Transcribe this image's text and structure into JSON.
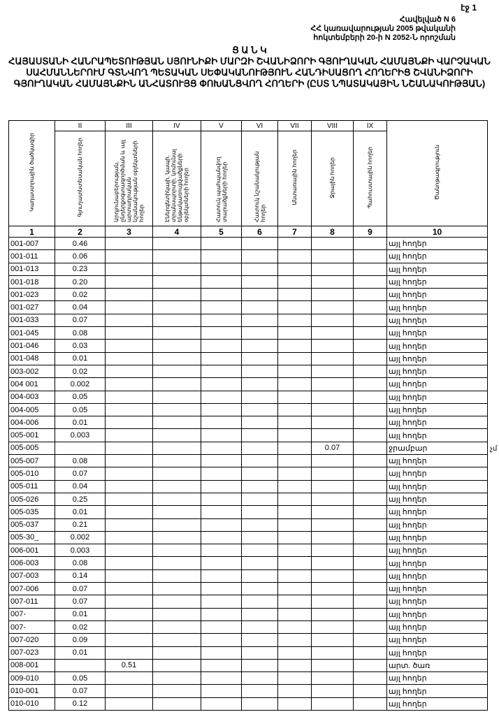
{
  "page_number": "էջ 1",
  "annex": [
    "Հավելված N 6",
    "ՀՀ կառավարության 2005 թվականի",
    "հոկտեմբերի 20-ի N 2052-Ն որոշման"
  ],
  "title": {
    "heading": "Ց Ա Ն Կ",
    "text": "ՀԱՅԱՍՏԱՆԻ ՀԱՆՐԱՊԵՏՈՒԹՅԱՆ ՍՅՈՒՆԻՔԻ ՄԱՐԶԻ ՇՎԱՆԻՁՈՐԻ ԳՅՈՒՂԱԿԱՆ ՀԱՄԱՅՆՔԻ ՎԱՐՉԱԿԱՆ ՍԱՀՄԱՆՆԵՐՈՒՄ ԳՏՆՎՈՂ ՊԵՏԱԿԱՆ ՍԵՓԱԿԱՆՈՒԹՅՈՒՆ ՀԱՆԴԻՍԱՑՈՂ ՀՈՂԵՐԻՑ ՇՎԱՆԻՁՈՐԻ ԳՅՈՒՂԱԿԱՆ ՀԱՄԱՅՆՔԻՆ ԱՆՀԱՏՈՒՅՑ ՓՈԽԱՆՑՎՈՂ ՀՈՂԵՐԻ (ԸՍՏ ՆՊԱՏԱԿԱՅԻՆ ՆՇԱՆԱԿՈՒԹՅԱՆ)"
  },
  "table": {
    "roman": [
      "",
      "II",
      "III",
      "IV",
      "V",
      "VI",
      "VII",
      "VIII",
      "IX",
      ""
    ],
    "headers": [
      "Կադաստրային ծածկագիր",
      "Գյուղատնտեսական հողեր",
      "Արդյունաբերության, ընդերքօգտագործման և այլ արտադրական նշանակության օբյեկտների հողեր",
      "Էներգետիկայի, կապի, տրանսպորտի, կոմունալ ենթակառուցվածքների օբյեկտների հողեր",
      "Հատուկ պահպանվող տարածքների հողեր",
      "Հատուկ նշանակության հողեր",
      "Անտառային հողեր",
      "Ջրային հողեր",
      "Պահուստային հողեր",
      "Ծանոթագրություն"
    ],
    "numbers": [
      "1",
      "2",
      "3",
      "4",
      "5",
      "6",
      "7",
      "8",
      "9",
      "10"
    ],
    "rows": [
      [
        "001-007",
        "0.46",
        "",
        "",
        "",
        "",
        "",
        "",
        "",
        "այլ հողեր"
      ],
      [
        "001-011",
        "0.06",
        "",
        "",
        "",
        "",
        "",
        "",
        "",
        "այլ հողեր"
      ],
      [
        "001-013",
        "0.23",
        "",
        "",
        "",
        "",
        "",
        "",
        "",
        "այլ հողեր"
      ],
      [
        "001-018",
        "0.20",
        "",
        "",
        "",
        "",
        "",
        "",
        "",
        "այլ հողեր"
      ],
      [
        "001-023",
        "0.02",
        "",
        "",
        "",
        "",
        "",
        "",
        "",
        "այլ հողեր"
      ],
      [
        "001-027",
        "0.04",
        "",
        "",
        "",
        "",
        "",
        "",
        "",
        "այլ հողեր"
      ],
      [
        "001-033",
        "0.07",
        "",
        "",
        "",
        "",
        "",
        "",
        "",
        "այլ հողեր"
      ],
      [
        "001-045",
        "0.08",
        "",
        "",
        "",
        "",
        "",
        "",
        "",
        "այլ հողեր"
      ],
      [
        "001-046",
        "0.03",
        "",
        "",
        "",
        "",
        "",
        "",
        "",
        "այլ հողեր"
      ],
      [
        "001-048",
        "0.01",
        "",
        "",
        "",
        "",
        "",
        "",
        "",
        "այլ հողեր"
      ],
      [
        "003-002",
        "0.02",
        "",
        "",
        "",
        "",
        "",
        "",
        "",
        "այլ հողեր"
      ],
      [
        "004 001",
        "0.002",
        "",
        "",
        "",
        "",
        "",
        "",
        "",
        "այլ հողեր"
      ],
      [
        "004-003",
        "0.05",
        "",
        "",
        "",
        "",
        "",
        "",
        "",
        "այլ հողեր"
      ],
      [
        "004-005",
        "0.05",
        "",
        "",
        "",
        "",
        "",
        "",
        "",
        "այլ հողեր"
      ],
      [
        "004-006",
        "0.01",
        "",
        "",
        "",
        "",
        "",
        "",
        "",
        "այլ հողեր"
      ],
      [
        "005-001",
        "0.003",
        "",
        "",
        "",
        "",
        "",
        "",
        "",
        "այլ հողեր"
      ],
      [
        "005-005",
        "",
        "",
        "",
        "",
        "",
        "",
        "0.07",
        "",
        "ջրամբար"
      ],
      [
        "005-007",
        "0.08",
        "",
        "",
        "",
        "",
        "",
        "",
        "",
        "այլ հողեր"
      ],
      [
        "005-010",
        "0.07",
        "",
        "",
        "",
        "",
        "",
        "",
        "",
        "այլ հողեր"
      ],
      [
        "005-011",
        "0.04",
        "",
        "",
        "",
        "",
        "",
        "",
        "",
        "այլ հողեր"
      ],
      [
        "005-026",
        "0.25",
        "",
        "",
        "",
        "",
        "",
        "",
        "",
        "այլ հողեր"
      ],
      [
        "005-035",
        "0.01",
        "",
        "",
        "",
        "",
        "",
        "",
        "",
        "այլ հողեր"
      ],
      [
        "005-037",
        "0.21",
        "",
        "",
        "",
        "",
        "",
        "",
        "",
        "այլ հողեր"
      ],
      [
        "005-30_",
        "0.002",
        "",
        "",
        "",
        "",
        "",
        "",
        "",
        "այլ հողեր"
      ],
      [
        "006-001",
        "0.003",
        "",
        "",
        "",
        "",
        "",
        "",
        "",
        "այլ հողեր"
      ],
      [
        "006-003",
        "0.08",
        "",
        "",
        "",
        "",
        "",
        "",
        "",
        "այլ հողեր"
      ],
      [
        "007-003",
        "0.14",
        "",
        "",
        "",
        "",
        "",
        "",
        "",
        "այլ հողեր"
      ],
      [
        "007-006",
        "0.07",
        "",
        "",
        "",
        "",
        "",
        "",
        "",
        "այլ հողեր"
      ],
      [
        "007-011",
        "0.07",
        "",
        "",
        "",
        "",
        "",
        "",
        "",
        "այլ հողեր"
      ],
      [
        "007-",
        "0.01",
        "",
        "",
        "",
        "",
        "",
        "",
        "",
        "այլ հողեր"
      ],
      [
        "007-",
        "0.02",
        "",
        "",
        "",
        "",
        "",
        "",
        "",
        "այլ հողեր"
      ],
      [
        "007-020",
        "0.09",
        "",
        "",
        "",
        "",
        "",
        "",
        "",
        "այլ հողեր"
      ],
      [
        "007-023",
        "0.01",
        "",
        "",
        "",
        "",
        "",
        "",
        "",
        "այլ հողեր"
      ],
      [
        "008-001",
        "",
        "0.51",
        "",
        "",
        "",
        "",
        "",
        "",
        "արտ. ծառ"
      ],
      [
        "009-010",
        "0.05",
        "",
        "",
        "",
        "",
        "",
        "",
        "",
        "այլ հողեր"
      ],
      [
        "010-001",
        "0.07",
        "",
        "",
        "",
        "",
        "",
        "",
        "",
        "այլ հողեր"
      ],
      [
        "010-010",
        "0.12",
        "",
        "",
        "",
        "",
        "",
        "",
        "",
        "այլ հողեր"
      ]
    ]
  },
  "margin_mark": "չմ"
}
